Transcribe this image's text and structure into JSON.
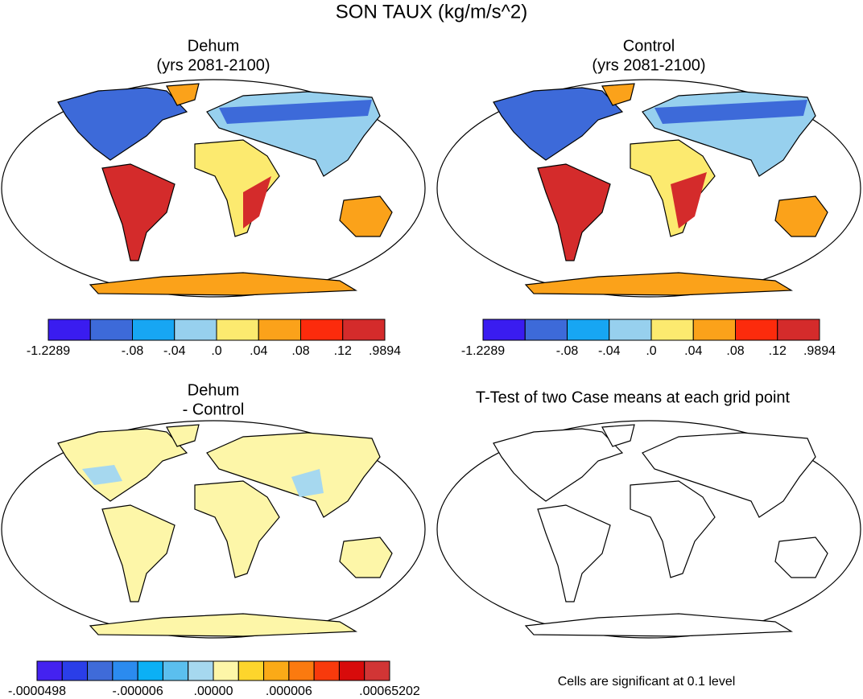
{
  "title": "SON TAUX (kg/m/s^2)",
  "panels": [
    {
      "title": "Dehum",
      "subtitle": "(yrs 2081-2100)",
      "colorbar": {
        "colors": [
          "#3a1cf0",
          "#3d6ad9",
          "#17a6f3",
          "#97d0ee",
          "#fcea6f",
          "#fba21a",
          "#fc2b0c",
          "#d42b2b"
        ],
        "labels": [
          "-1.2289",
          null,
          "-.08",
          "-.04",
          ".0",
          ".04",
          ".08",
          ".12",
          ".9894"
        ]
      }
    },
    {
      "title": "Control",
      "subtitle": "(yrs 2081-2100)",
      "colorbar": {
        "colors": [
          "#3a1cf0",
          "#3d6ad9",
          "#17a6f3",
          "#97d0ee",
          "#fcea6f",
          "#fba21a",
          "#fc2b0c",
          "#d42b2b"
        ],
        "labels": [
          "-1.2289",
          null,
          "-.08",
          "-.04",
          ".0",
          ".04",
          ".08",
          ".12",
          ".9894"
        ]
      }
    },
    {
      "title": "Dehum",
      "subtitle": "- Control",
      "colorbar": {
        "colors": [
          "#4422f0",
          "#2a3ee8",
          "#3f6bd9",
          "#2b8bef",
          "#0bb0f5",
          "#5bbfee",
          "#a6d8ef",
          "#fdf6a8",
          "#fdd52c",
          "#fbaa17",
          "#fb7a0f",
          "#f83a0c",
          "#d80b0b",
          "#d13535"
        ],
        "labels": [
          "-.0000498",
          null,
          null,
          null,
          "-.000006",
          null,
          null,
          ".00000",
          null,
          null,
          ".000006",
          null,
          null,
          null,
          ".00065202"
        ]
      }
    },
    {
      "title": "T-Test of two Case means at each grid point",
      "note": "Cells are significant at 0.1 level"
    }
  ]
}
